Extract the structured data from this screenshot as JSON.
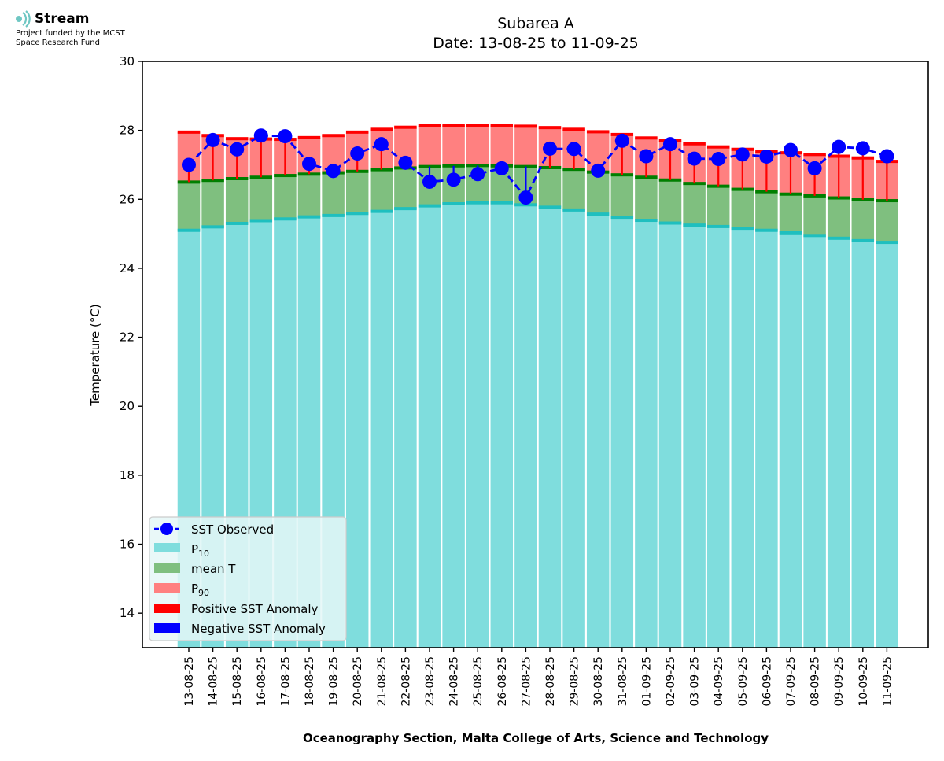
{
  "logo": {
    "name": "Stream",
    "funding": "Project funded by the MCST\nSpace Research Fund"
  },
  "footer": "Oceanography Section, Malta College of Arts, Science and Technology",
  "colors": {
    "p10": "#7fdddd",
    "mean": "#7fbf7f",
    "p90": "#ff8080",
    "positive_anomaly": "#ff0000",
    "negative_anomaly": "#0000ff",
    "observed": "#0000ff",
    "p10_edge": "#1fbfbf",
    "mean_edge": "#007f00",
    "legend_face": "#e5f7f7"
  },
  "chart_data": {
    "type": "bar",
    "title": "Subarea A",
    "subtitle": "Date: 13-08-25 to 11-09-25",
    "ylabel": "Temperature (°C)",
    "xlabel": "",
    "ylim": [
      13,
      30
    ],
    "yticks": [
      "14",
      "16",
      "18",
      "20",
      "22",
      "24",
      "26",
      "28",
      "30"
    ],
    "grid": false,
    "legend_position": "lower-left",
    "categories": [
      "13-08-25",
      "14-08-25",
      "15-08-25",
      "16-08-25",
      "17-08-25",
      "18-08-25",
      "19-08-25",
      "20-08-25",
      "21-08-25",
      "22-08-25",
      "23-08-25",
      "24-08-25",
      "25-08-25",
      "26-08-25",
      "27-08-25",
      "28-08-25",
      "29-08-25",
      "30-08-25",
      "31-08-25",
      "01-09-25",
      "02-09-25",
      "03-09-25",
      "04-09-25",
      "05-09-25",
      "06-09-25",
      "07-09-25",
      "08-09-25",
      "09-09-25",
      "10-09-25",
      "11-09-25"
    ],
    "series": [
      {
        "name": "P10",
        "values": [
          25.1,
          25.2,
          25.3,
          25.38,
          25.43,
          25.49,
          25.53,
          25.59,
          25.65,
          25.73,
          25.81,
          25.87,
          25.9,
          25.9,
          25.84,
          25.77,
          25.69,
          25.57,
          25.48,
          25.39,
          25.31,
          25.25,
          25.21,
          25.16,
          25.1,
          25.03,
          24.95,
          24.87,
          24.8,
          24.75
        ]
      },
      {
        "name": "mean T",
        "values": [
          26.5,
          26.55,
          26.6,
          26.64,
          26.69,
          26.73,
          26.77,
          26.81,
          26.86,
          26.91,
          26.95,
          26.97,
          26.98,
          26.97,
          26.95,
          26.92,
          26.87,
          26.79,
          26.71,
          26.64,
          26.56,
          26.46,
          26.38,
          26.29,
          26.22,
          26.15,
          26.1,
          26.04,
          25.99,
          25.96
        ]
      },
      {
        "name": "P90",
        "values": [
          27.95,
          27.85,
          27.76,
          27.75,
          27.74,
          27.79,
          27.85,
          27.95,
          28.03,
          28.09,
          28.13,
          28.15,
          28.15,
          28.14,
          28.12,
          28.08,
          28.03,
          27.96,
          27.88,
          27.78,
          27.7,
          27.61,
          27.52,
          27.45,
          27.38,
          27.35,
          27.3,
          27.25,
          27.2,
          27.1
        ]
      },
      {
        "name": "SST Observed",
        "values": [
          27.0,
          27.72,
          27.45,
          27.85,
          27.83,
          27.03,
          26.82,
          27.33,
          27.6,
          27.06,
          26.51,
          26.57,
          26.73,
          26.9,
          26.05,
          27.47,
          27.46,
          26.83,
          27.7,
          27.25,
          27.6,
          27.18,
          27.17,
          27.3,
          27.24,
          27.43,
          26.9,
          27.52,
          27.48,
          27.25
        ]
      }
    ],
    "legend": [
      "SST Observed",
      "P10",
      "mean T",
      "P90",
      "Positive SST Anomaly",
      "Negative SST Anomaly"
    ]
  }
}
